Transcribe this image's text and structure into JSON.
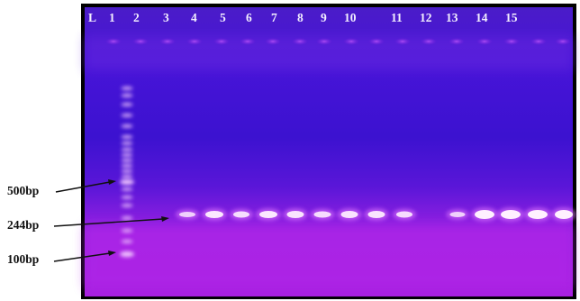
{
  "figure": {
    "lane_labels": [
      "L",
      "1",
      "2",
      "3",
      "4",
      "5",
      "6",
      "7",
      "8",
      "9",
      "10",
      "11",
      "12",
      "13",
      "14",
      "15"
    ],
    "marker_labels": [
      "500bp",
      "244bp",
      "100bp"
    ],
    "colors": {
      "gel_background": "#3412c8",
      "gel_glow": "#a020e0",
      "band": "#ffe6ff",
      "frame": "#000000",
      "annotation": "#111111"
    }
  }
}
